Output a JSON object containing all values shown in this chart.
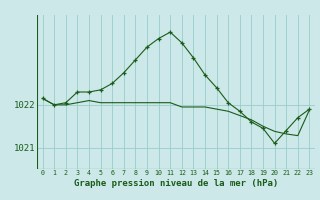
{
  "title": "Graphe pression niveau de la mer (hPa)",
  "background_color": "#cce8e8",
  "grid_color": "#99cccc",
  "line_color": "#1a5c1a",
  "x_hours": [
    0,
    1,
    2,
    3,
    4,
    5,
    6,
    7,
    8,
    9,
    10,
    11,
    12,
    13,
    14,
    15,
    16,
    17,
    18,
    19,
    20,
    21,
    22,
    23
  ],
  "line1": [
    1022.15,
    1022.0,
    1022.05,
    1022.3,
    1022.3,
    1022.35,
    1022.5,
    1022.75,
    1023.05,
    1023.35,
    1023.55,
    1023.7,
    1023.45,
    1023.1,
    1022.7,
    1022.4,
    1022.05,
    1021.85,
    1021.6,
    1021.45,
    1021.1,
    1021.4,
    1021.7,
    1021.9
  ],
  "line2": [
    1022.15,
    1022.0,
    1022.0,
    1022.05,
    1022.1,
    1022.05,
    1022.05,
    1022.05,
    1022.05,
    1022.05,
    1022.05,
    1022.05,
    1021.95,
    1021.95,
    1021.95,
    1021.9,
    1021.85,
    1021.75,
    1021.65,
    1021.5,
    1021.38,
    1021.32,
    1021.28,
    1021.88
  ],
  "ylim_min": 1020.5,
  "ylim_max": 1024.1,
  "yticks": [
    1021,
    1022
  ],
  "title_fontsize": 6.5
}
